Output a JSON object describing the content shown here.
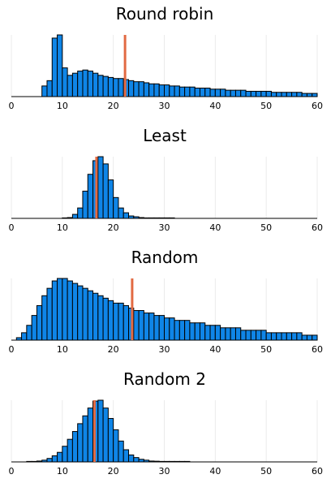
{
  "chart_data": [
    {
      "type": "bar",
      "title": "Round robin",
      "xlim": [
        0,
        60
      ],
      "xticks": [
        0,
        10,
        20,
        30,
        40,
        50,
        60
      ],
      "bin_width": 1,
      "bin_start": 0,
      "bar_color": "#0f85e7",
      "mean_line_color": "#e26a43",
      "mean_value": 22.3,
      "grid": true,
      "y_axis_visible": false,
      "counts": [
        0,
        0,
        0,
        0,
        0,
        0,
        0.1,
        0.15,
        0.55,
        0.58,
        0.27,
        0.2,
        0.22,
        0.24,
        0.25,
        0.24,
        0.22,
        0.2,
        0.19,
        0.18,
        0.17,
        0.17,
        0.16,
        0.15,
        0.14,
        0.14,
        0.13,
        0.12,
        0.12,
        0.11,
        0.11,
        0.1,
        0.1,
        0.09,
        0.09,
        0.09,
        0.08,
        0.08,
        0.08,
        0.07,
        0.07,
        0.07,
        0.06,
        0.06,
        0.06,
        0.06,
        0.05,
        0.05,
        0.05,
        0.05,
        0.05,
        0.04,
        0.04,
        0.04,
        0.04,
        0.04,
        0.04,
        0.03,
        0.03,
        0.03
      ]
    },
    {
      "type": "bar",
      "title": "Least",
      "xlim": [
        0,
        60
      ],
      "xticks": [
        0,
        10,
        20,
        30,
        40,
        50,
        60
      ],
      "bin_width": 1,
      "bin_start": 0,
      "bar_color": "#0f85e7",
      "mean_line_color": "#e26a43",
      "mean_value": 16.7,
      "grid": true,
      "y_axis_visible": false,
      "counts": [
        0,
        0,
        0,
        0,
        0,
        0,
        0,
        0,
        0,
        0,
        0.003,
        0.01,
        0.05,
        0.13,
        0.34,
        0.55,
        0.72,
        0.77,
        0.68,
        0.48,
        0.26,
        0.13,
        0.07,
        0.03,
        0.02,
        0.01,
        0.005,
        0.004,
        0.003,
        0.002,
        0.002,
        0.002,
        0,
        0,
        0,
        0,
        0,
        0,
        0,
        0,
        0,
        0,
        0,
        0,
        0,
        0,
        0,
        0,
        0,
        0,
        0,
        0,
        0,
        0,
        0,
        0,
        0,
        0,
        0,
        0
      ]
    },
    {
      "type": "bar",
      "title": "Random",
      "xlim": [
        0,
        60
      ],
      "xticks": [
        0,
        10,
        20,
        30,
        40,
        50,
        60
      ],
      "bin_width": 1,
      "bin_start": 0,
      "bar_color": "#0f85e7",
      "mean_line_color": "#e26a43",
      "mean_value": 23.7,
      "grid": true,
      "y_axis_visible": false,
      "counts": [
        0,
        0.01,
        0.03,
        0.06,
        0.1,
        0.14,
        0.18,
        0.21,
        0.24,
        0.25,
        0.25,
        0.24,
        0.23,
        0.22,
        0.21,
        0.2,
        0.19,
        0.18,
        0.17,
        0.16,
        0.15,
        0.15,
        0.14,
        0.13,
        0.12,
        0.12,
        0.11,
        0.11,
        0.1,
        0.1,
        0.09,
        0.09,
        0.08,
        0.08,
        0.08,
        0.07,
        0.07,
        0.07,
        0.06,
        0.06,
        0.06,
        0.05,
        0.05,
        0.05,
        0.05,
        0.04,
        0.04,
        0.04,
        0.04,
        0.04,
        0.03,
        0.03,
        0.03,
        0.03,
        0.03,
        0.03,
        0.03,
        0.02,
        0.02,
        0.02
      ]
    },
    {
      "type": "bar",
      "title": "Random 2",
      "xlim": [
        0,
        60
      ],
      "xticks": [
        0,
        10,
        20,
        30,
        40,
        50,
        60
      ],
      "bin_width": 1,
      "bin_start": 0,
      "bar_color": "#0f85e7",
      "mean_line_color": "#e26a43",
      "mean_value": 16.3,
      "grid": true,
      "y_axis_visible": false,
      "counts": [
        0,
        0,
        0,
        0.003,
        0.005,
        0.01,
        0.02,
        0.04,
        0.07,
        0.11,
        0.18,
        0.26,
        0.35,
        0.44,
        0.53,
        0.62,
        0.7,
        0.71,
        0.62,
        0.5,
        0.37,
        0.24,
        0.14,
        0.08,
        0.05,
        0.03,
        0.02,
        0.01,
        0.008,
        0.005,
        0.003,
        0.002,
        0.002,
        0.001,
        0.001,
        0,
        0,
        0,
        0,
        0,
        0,
        0,
        0,
        0,
        0,
        0,
        0,
        0,
        0,
        0,
        0,
        0,
        0,
        0,
        0,
        0,
        0,
        0,
        0,
        0
      ]
    }
  ]
}
